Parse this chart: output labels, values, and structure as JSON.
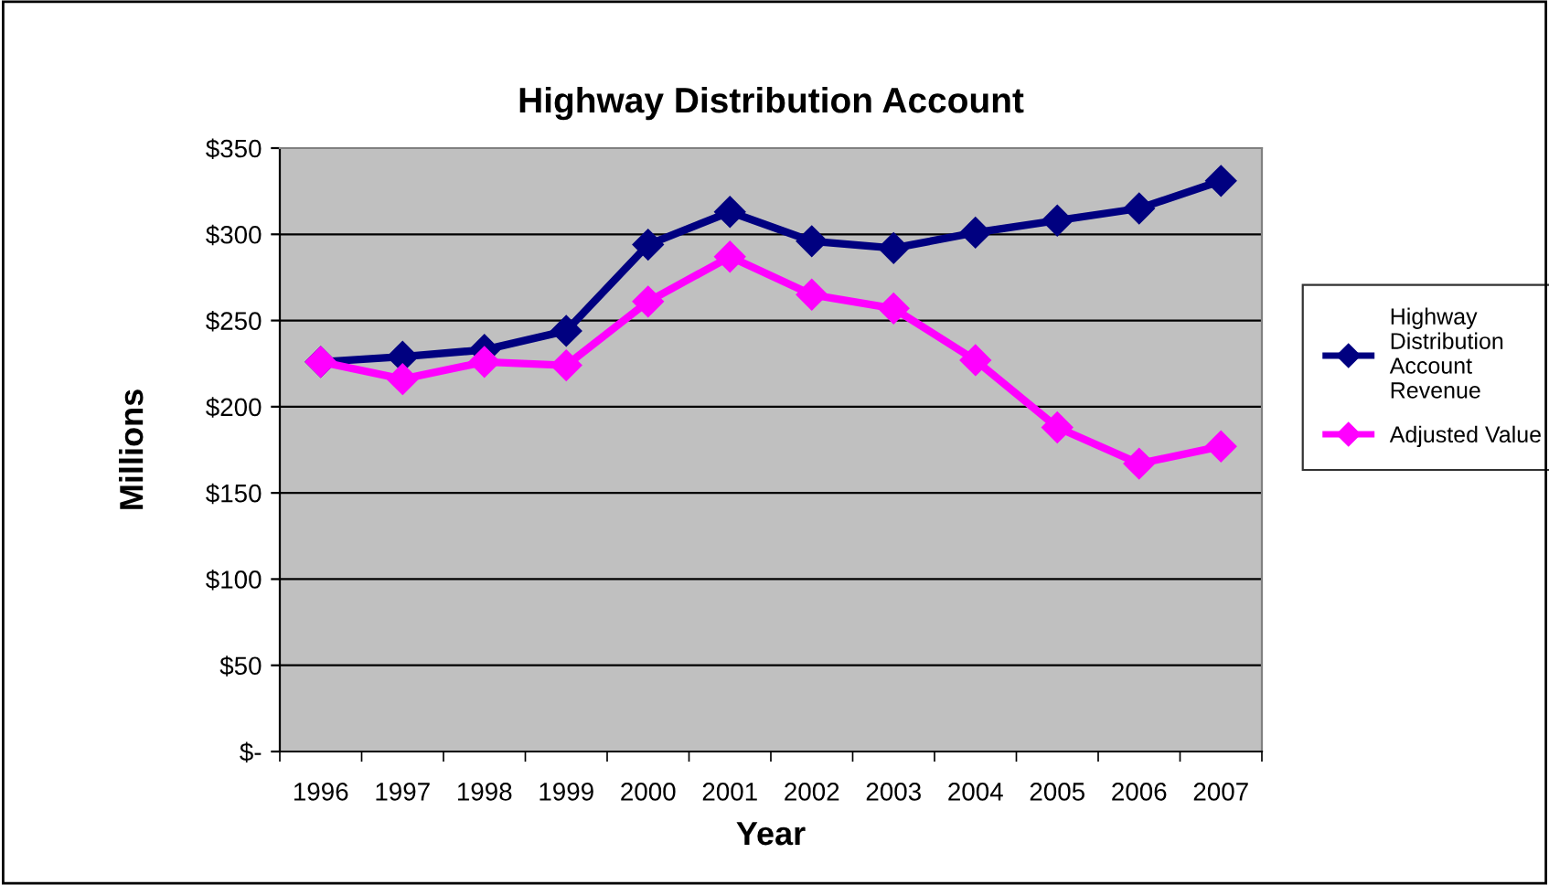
{
  "chart_data": {
    "type": "line",
    "title": "Highway Distribution Account",
    "xlabel": "Year",
    "ylabel": "Millions",
    "categories": [
      "1996",
      "1997",
      "1998",
      "1999",
      "2000",
      "2001",
      "2002",
      "2003",
      "2004",
      "2005",
      "2006",
      "2007"
    ],
    "series": [
      {
        "name": "Highway Distribution Account Revenue",
        "color": "#000080",
        "values": [
          226,
          229,
          233,
          244,
          294,
          313,
          296,
          292,
          301,
          308,
          315,
          331
        ]
      },
      {
        "name": "Adjusted Value",
        "color": "#ff00ff",
        "values": [
          226,
          216,
          226,
          224,
          261,
          287,
          265,
          257,
          227,
          188,
          167,
          177
        ]
      }
    ],
    "ylim": [
      0,
      350
    ],
    "yticks": [
      {
        "value": 0,
        "label": "$-"
      },
      {
        "value": 50,
        "label": "$50"
      },
      {
        "value": 100,
        "label": "$100"
      },
      {
        "value": 150,
        "label": "$150"
      },
      {
        "value": 200,
        "label": "$200"
      },
      {
        "value": 250,
        "label": "$250"
      },
      {
        "value": 300,
        "label": "$300"
      },
      {
        "value": 350,
        "label": "$350"
      }
    ],
    "grid": "y",
    "legend": "right",
    "marker": "diamond",
    "line_style": "solid"
  }
}
